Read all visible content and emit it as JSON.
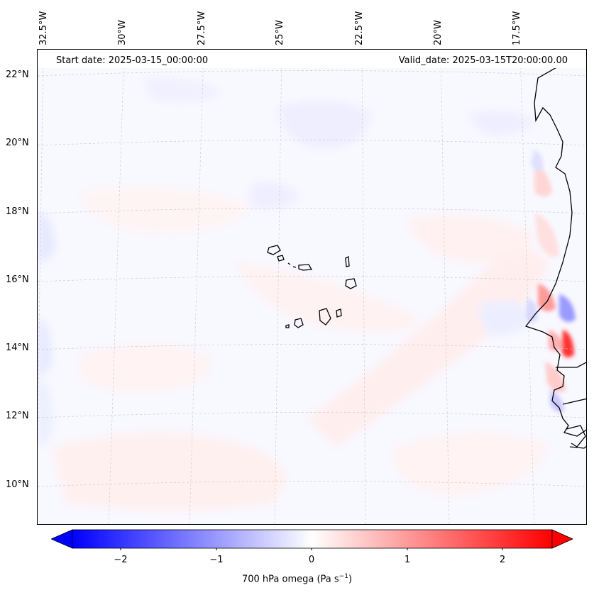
{
  "header": {
    "start_date": "Start date: 2025-03-15_00:00:00",
    "valid_date": "Valid_date: 2025-03-15T20:00:00.00"
  },
  "longitude_labels": [
    "32.5°W",
    "30°W",
    "27.5°W",
    "25°W",
    "22.5°W",
    "20°W",
    "17.5°W"
  ],
  "latitude_labels": [
    "22°N",
    "20°N",
    "18°N",
    "16°N",
    "14°N",
    "12°N",
    "10°N"
  ],
  "colorbar": {
    "label_prefix": "700 hPa omega (Pa s",
    "label_exp": "−1",
    "label_suffix": ")",
    "ticks": [
      "−2",
      "−1",
      "0",
      "1",
      "2"
    ],
    "range": [
      -2.5,
      2.5
    ],
    "colors": {
      "min": "#0000ff",
      "mid": "#ffffff",
      "max": "#ff0000"
    }
  },
  "colors": {
    "frame": "#000000",
    "grid": "#c8c8c8",
    "coast": "#000000"
  }
}
